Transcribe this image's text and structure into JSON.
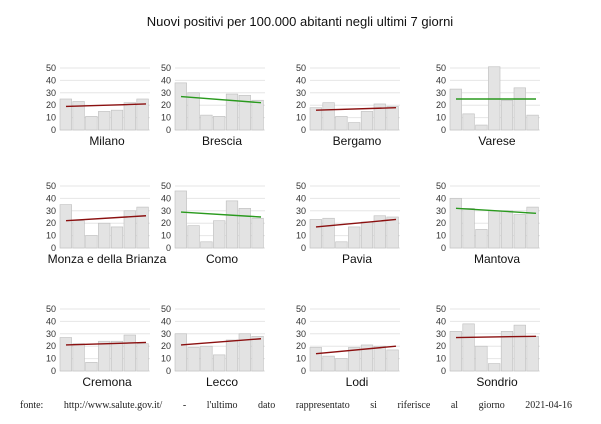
{
  "chart_title": "Nuovi positivi per 100.000 abitanti negli ultimi 7 giorni",
  "footer": {
    "words": [
      "fonte:",
      "http://www.salute.gov.it/",
      "-",
      "l'ultimo",
      "dato",
      "rappresentato",
      "si",
      "riferisce",
      "al",
      "giorno",
      "2021-04-16"
    ]
  },
  "colors": {
    "bar_fill": "#e3e3e3",
    "bar_stroke": "#bdbdbd",
    "grid": "#e6e6e6",
    "trend_up": "#8b1010",
    "trend_down": "#2a9a1e"
  },
  "chart_data": [
    {
      "type": "bar",
      "title": "Milano",
      "yticks": [
        0,
        10,
        20,
        30,
        40,
        50
      ],
      "ylim": [
        0,
        50
      ],
      "values": [
        25,
        23,
        11,
        15,
        16,
        22,
        25
      ],
      "trend": [
        19,
        21
      ],
      "trend_direction": "up"
    },
    {
      "type": "bar",
      "title": "Brescia",
      "yticks": [
        0,
        10,
        20,
        30,
        40,
        50
      ],
      "ylim": [
        0,
        50
      ],
      "values": [
        38,
        30,
        12,
        11,
        29,
        28,
        24
      ],
      "trend": [
        27,
        22
      ],
      "trend_direction": "down"
    },
    {
      "type": "bar",
      "title": "Bergamo",
      "yticks": [
        0,
        10,
        20,
        30,
        40,
        50
      ],
      "ylim": [
        0,
        50
      ],
      "values": [
        18,
        22,
        11,
        6,
        15,
        21,
        19
      ],
      "trend": [
        16,
        18
      ],
      "trend_direction": "up"
    },
    {
      "type": "bar",
      "title": "Varese",
      "yticks": [
        0,
        10,
        20,
        30,
        40,
        50
      ],
      "ylim": [
        0,
        50
      ],
      "values": [
        33,
        13,
        4,
        51,
        24,
        34,
        12
      ],
      "trend": [
        25,
        25
      ],
      "trend_direction": "down"
    },
    {
      "type": "bar",
      "title": "Monza e della Brianza",
      "yticks": [
        0,
        10,
        20,
        30,
        40,
        50
      ],
      "ylim": [
        0,
        50
      ],
      "values": [
        35,
        22,
        10,
        20,
        17,
        30,
        33
      ],
      "trend": [
        22,
        26
      ],
      "trend_direction": "up"
    },
    {
      "type": "bar",
      "title": "Como",
      "yticks": [
        0,
        10,
        20,
        30,
        40,
        50
      ],
      "ylim": [
        0,
        50
      ],
      "values": [
        46,
        18,
        5,
        22,
        38,
        32,
        24
      ],
      "trend": [
        29,
        25
      ],
      "trend_direction": "down"
    },
    {
      "type": "bar",
      "title": "Pavia",
      "yticks": [
        0,
        10,
        20,
        30,
        40,
        50
      ],
      "ylim": [
        0,
        50
      ],
      "values": [
        23,
        24,
        5,
        17,
        21,
        26,
        25
      ],
      "trend": [
        17,
        23
      ],
      "trend_direction": "up"
    },
    {
      "type": "bar",
      "title": "Mantova",
      "yticks": [
        0,
        10,
        20,
        30,
        40,
        50
      ],
      "ylim": [
        0,
        50
      ],
      "values": [
        40,
        32,
        15,
        30,
        30,
        27,
        33
      ],
      "trend": [
        32,
        28
      ],
      "trend_direction": "down"
    },
    {
      "type": "bar",
      "title": "Cremona",
      "yticks": [
        0,
        10,
        20,
        30,
        40,
        50
      ],
      "ylim": [
        0,
        50
      ],
      "values": [
        27,
        22,
        7,
        24,
        24,
        29,
        22
      ],
      "trend": [
        21,
        23
      ],
      "trend_direction": "up"
    },
    {
      "type": "bar",
      "title": "Lecco",
      "yticks": [
        0,
        10,
        20,
        30,
        40,
        50
      ],
      "ylim": [
        0,
        50
      ],
      "values": [
        30,
        19,
        20,
        13,
        25,
        30,
        28
      ],
      "trend": [
        21,
        26
      ],
      "trend_direction": "up"
    },
    {
      "type": "bar",
      "title": "Lodi",
      "yticks": [
        0,
        10,
        20,
        30,
        40,
        50
      ],
      "ylim": [
        0,
        50
      ],
      "values": [
        19,
        12,
        10,
        19,
        21,
        20,
        17
      ],
      "trend": [
        14,
        20
      ],
      "trend_direction": "up"
    },
    {
      "type": "bar",
      "title": "Sondrio",
      "yticks": [
        0,
        10,
        20,
        30,
        40,
        50
      ],
      "ylim": [
        0,
        50
      ],
      "values": [
        32,
        38,
        20,
        6,
        32,
        37,
        28
      ],
      "trend": [
        27,
        28
      ],
      "trend_direction": "up"
    }
  ]
}
